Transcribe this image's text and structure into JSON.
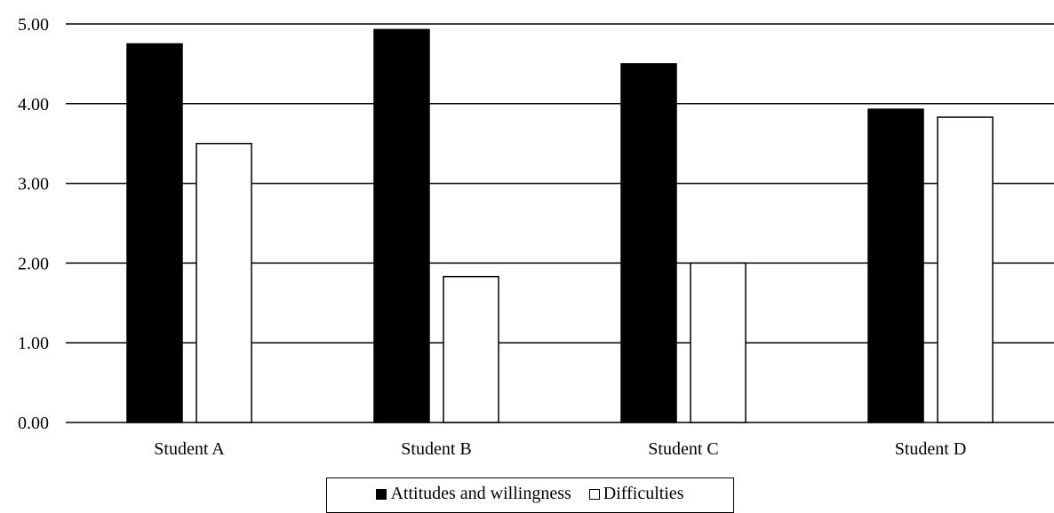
{
  "chart_data": {
    "type": "bar",
    "categories": [
      "Student A",
      "Student B",
      "Student C",
      "Student D"
    ],
    "series": [
      {
        "name": "Attitudes and willingness",
        "values": [
          4.75,
          4.93,
          4.5,
          3.93
        ],
        "color": "#000000"
      },
      {
        "name": "Difficulties",
        "values": [
          3.5,
          1.83,
          2.0,
          3.83
        ],
        "color": "#ffffff"
      }
    ],
    "yticks": [
      "0.00",
      "1.00",
      "2.00",
      "3.00",
      "4.00",
      "5.00"
    ],
    "ylim": [
      0,
      5
    ],
    "grid": true,
    "legend_position": "bottom"
  }
}
